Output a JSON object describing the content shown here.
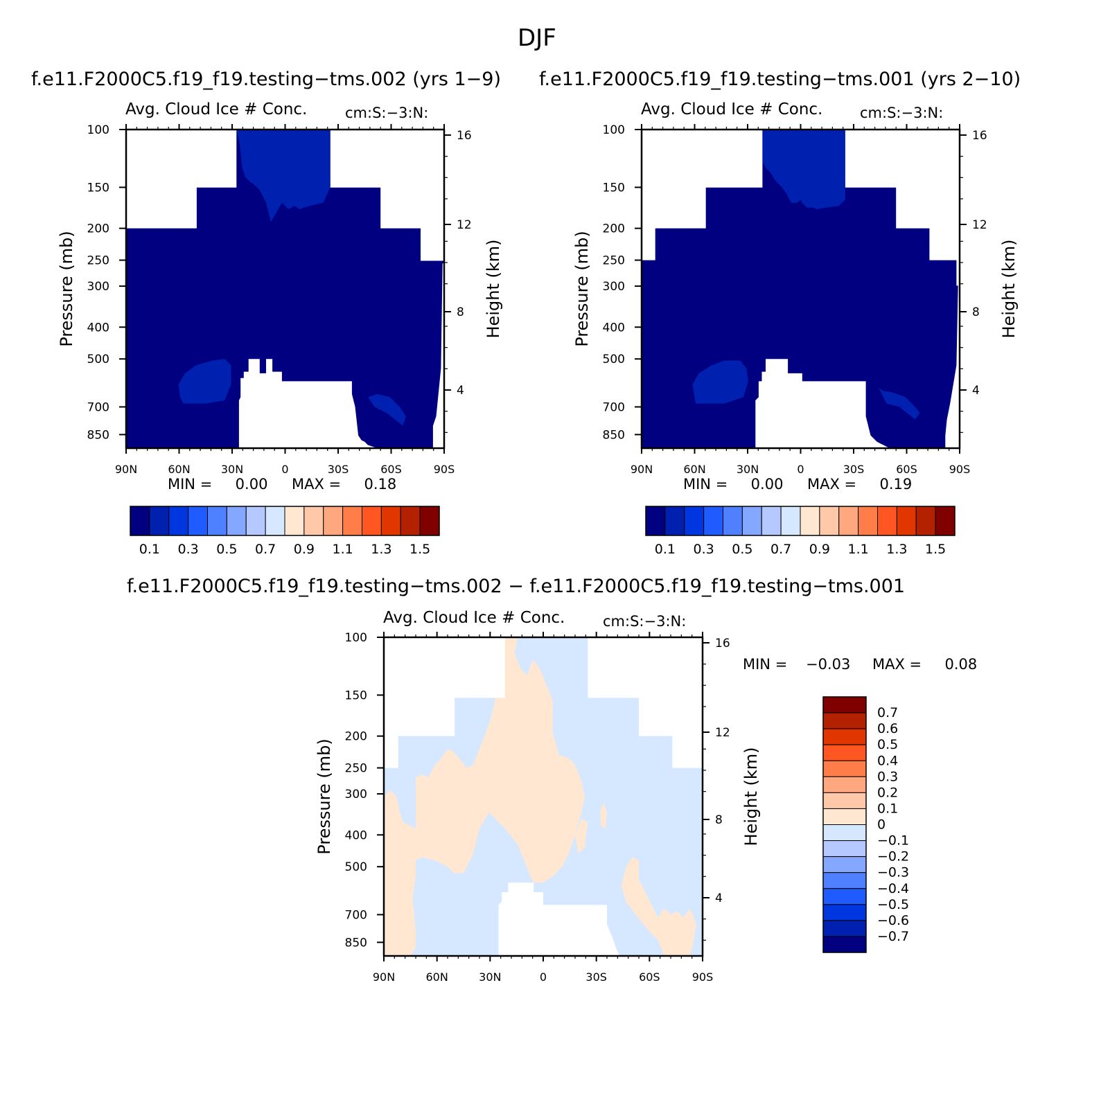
{
  "title": "DJF",
  "panels": [
    {
      "case_title": "f.e11.F2000C5.f19_f19.testing−tms.002 (yrs 1−9)",
      "variable": "Avg. Cloud Ice # Conc.",
      "units": "cm:S:−3:N:",
      "y_title": "Pressure (mb)",
      "y2_title": "Height (km)",
      "min_text": "MIN =     0.00",
      "max_text": "MAX =     0.18"
    },
    {
      "case_title": "f.e11.F2000C5.f19_f19.testing−tms.001 (yrs 2−10)",
      "variable": "Avg. Cloud Ice # Conc.",
      "units": "cm:S:−3:N:",
      "y_title": "Pressure (mb)",
      "y2_title": "Height (km)",
      "min_text": "MIN =     0.00",
      "max_text": "MAX =     0.19"
    },
    {
      "case_title": "f.e11.F2000C5.f19_f19.testing−tms.002 − f.e11.F2000C5.f19_f19.testing−tms.001",
      "variable": "Avg. Cloud Ice # Conc.",
      "units": "cm:S:−3:N:",
      "y_title": "Pressure (mb)",
      "y2_title": "Height (km)",
      "min_text": "MIN =    −0.03",
      "max_text": "MAX =     0.08"
    }
  ],
  "chart_data": [
    {
      "type": "heatmap",
      "title": "f.e11.F2000C5.f19_f19.testing−tms.002 (yrs 1−9)",
      "ylabel": "Pressure (mb)",
      "y2label": "Height (km)",
      "x_ticks": [
        "90N",
        "60N",
        "30N",
        "0",
        "30S",
        "60S",
        "90S"
      ],
      "y_ticks": [
        "100",
        "150",
        "200",
        "250",
        "300",
        "400",
        "500",
        "700",
        "850"
      ],
      "y2_ticks": [
        "16",
        "12",
        "8",
        "4"
      ],
      "ylim": [
        1000,
        100
      ],
      "y_scale": "log",
      "colorbar": {
        "orientation": "horizontal",
        "labels": [
          "0.1",
          "0.3",
          "0.5",
          "0.7",
          "0.9",
          "1.1",
          "1.3",
          "1.5"
        ],
        "colors": [
          "#000080",
          "#0020b0",
          "#0036e0",
          "#1f5bff",
          "#4f80ff",
          "#84a7ff",
          "#b5c8ff",
          "#d6e8ff",
          "#ffe7d2",
          "#ffc9a9",
          "#ffa77e",
          "#ff7d48",
          "#ff5622",
          "#e23600",
          "#b42100",
          "#800000"
        ]
      },
      "min": 0.0,
      "max": 0.18,
      "regions": [
        {
          "value": "0.0–0.1 (dark blue)",
          "area": "troposphere 90N–90S up to ~150-200 mb"
        },
        {
          "value": "0.1–0.2",
          "area": "tropical upper troposphere near 100–190 mb; small mid-latitude lobes near 700 mb"
        },
        {
          "value": "missing",
          "area": "below ~650 mb between 25N and 45S; above 150 mb poleward of 30°"
        }
      ]
    },
    {
      "type": "heatmap",
      "title": "f.e11.F2000C5.f19_f19.testing−tms.001 (yrs 2−10)",
      "ylabel": "Pressure (mb)",
      "y2label": "Height (km)",
      "x_ticks": [
        "90N",
        "60N",
        "30N",
        "0",
        "30S",
        "60S",
        "90S"
      ],
      "y_ticks": [
        "100",
        "150",
        "200",
        "250",
        "300",
        "400",
        "500",
        "700",
        "850"
      ],
      "y2_ticks": [
        "16",
        "12",
        "8",
        "4"
      ],
      "ylim": [
        1000,
        100
      ],
      "y_scale": "log",
      "colorbar": {
        "orientation": "horizontal",
        "labels": [
          "0.1",
          "0.3",
          "0.5",
          "0.7",
          "0.9",
          "1.1",
          "1.3",
          "1.5"
        ],
        "colors": [
          "#000080",
          "#0020b0",
          "#0036e0",
          "#1f5bff",
          "#4f80ff",
          "#84a7ff",
          "#b5c8ff",
          "#d6e8ff",
          "#ffe7d2",
          "#ffc9a9",
          "#ffa77e",
          "#ff7d48",
          "#ff5622",
          "#e23600",
          "#b42100",
          "#800000"
        ]
      },
      "min": 0.0,
      "max": 0.19,
      "regions": [
        {
          "value": "0.0–0.1 (dark blue)",
          "area": "troposphere 90N–90S up to ~150-200 mb"
        },
        {
          "value": "0.1–0.2",
          "area": "tropical upper troposphere near 100–190 mb; small mid-latitude lobes near 700 mb"
        },
        {
          "value": "missing",
          "area": "below ~650 mb between 25N and 45S; above 150 mb poleward of 30°"
        }
      ]
    },
    {
      "type": "heatmap",
      "title": "f.e11.F2000C5.f19_f19.testing−tms.002 − f.e11.F2000C5.f19_f19.testing−tms.001",
      "ylabel": "Pressure (mb)",
      "y2label": "Height (km)",
      "x_ticks": [
        "90N",
        "60N",
        "30N",
        "0",
        "30S",
        "60S",
        "90S"
      ],
      "y_ticks": [
        "100",
        "150",
        "200",
        "250",
        "300",
        "400",
        "500",
        "700",
        "850"
      ],
      "y2_ticks": [
        "16",
        "12",
        "8",
        "4"
      ],
      "ylim": [
        1000,
        100
      ],
      "y_scale": "log",
      "colorbar": {
        "orientation": "vertical",
        "labels": [
          "0.7",
          "0.6",
          "0.5",
          "0.4",
          "0.3",
          "0.2",
          "0.1",
          "0",
          "−0.1",
          "−0.2",
          "−0.3",
          "−0.4",
          "−0.5",
          "−0.6",
          "−0.7"
        ],
        "colors": [
          "#800000",
          "#b42100",
          "#e23600",
          "#ff5622",
          "#ff7d48",
          "#ffa77e",
          "#ffc9a9",
          "#ffe7d2",
          "#d6e8ff",
          "#b5c8ff",
          "#84a7ff",
          "#4f80ff",
          "#1f5bff",
          "#0036e0",
          "#0020b0",
          "#000080"
        ]
      },
      "min": -0.03,
      "max": 0.08,
      "regions": [
        {
          "value": "0 to 0.1 (light orange)",
          "area": "tropical column 30N–5S from 100 to 500 mb; northern high latitudes 200–850 mb; southern mid latitudes 500–850 mb"
        },
        {
          "value": "−0.1 to 0 (light blue)",
          "area": "southern hemisphere upper/mid troposphere; northern mid latitudes 400–850 mb"
        }
      ]
    }
  ]
}
